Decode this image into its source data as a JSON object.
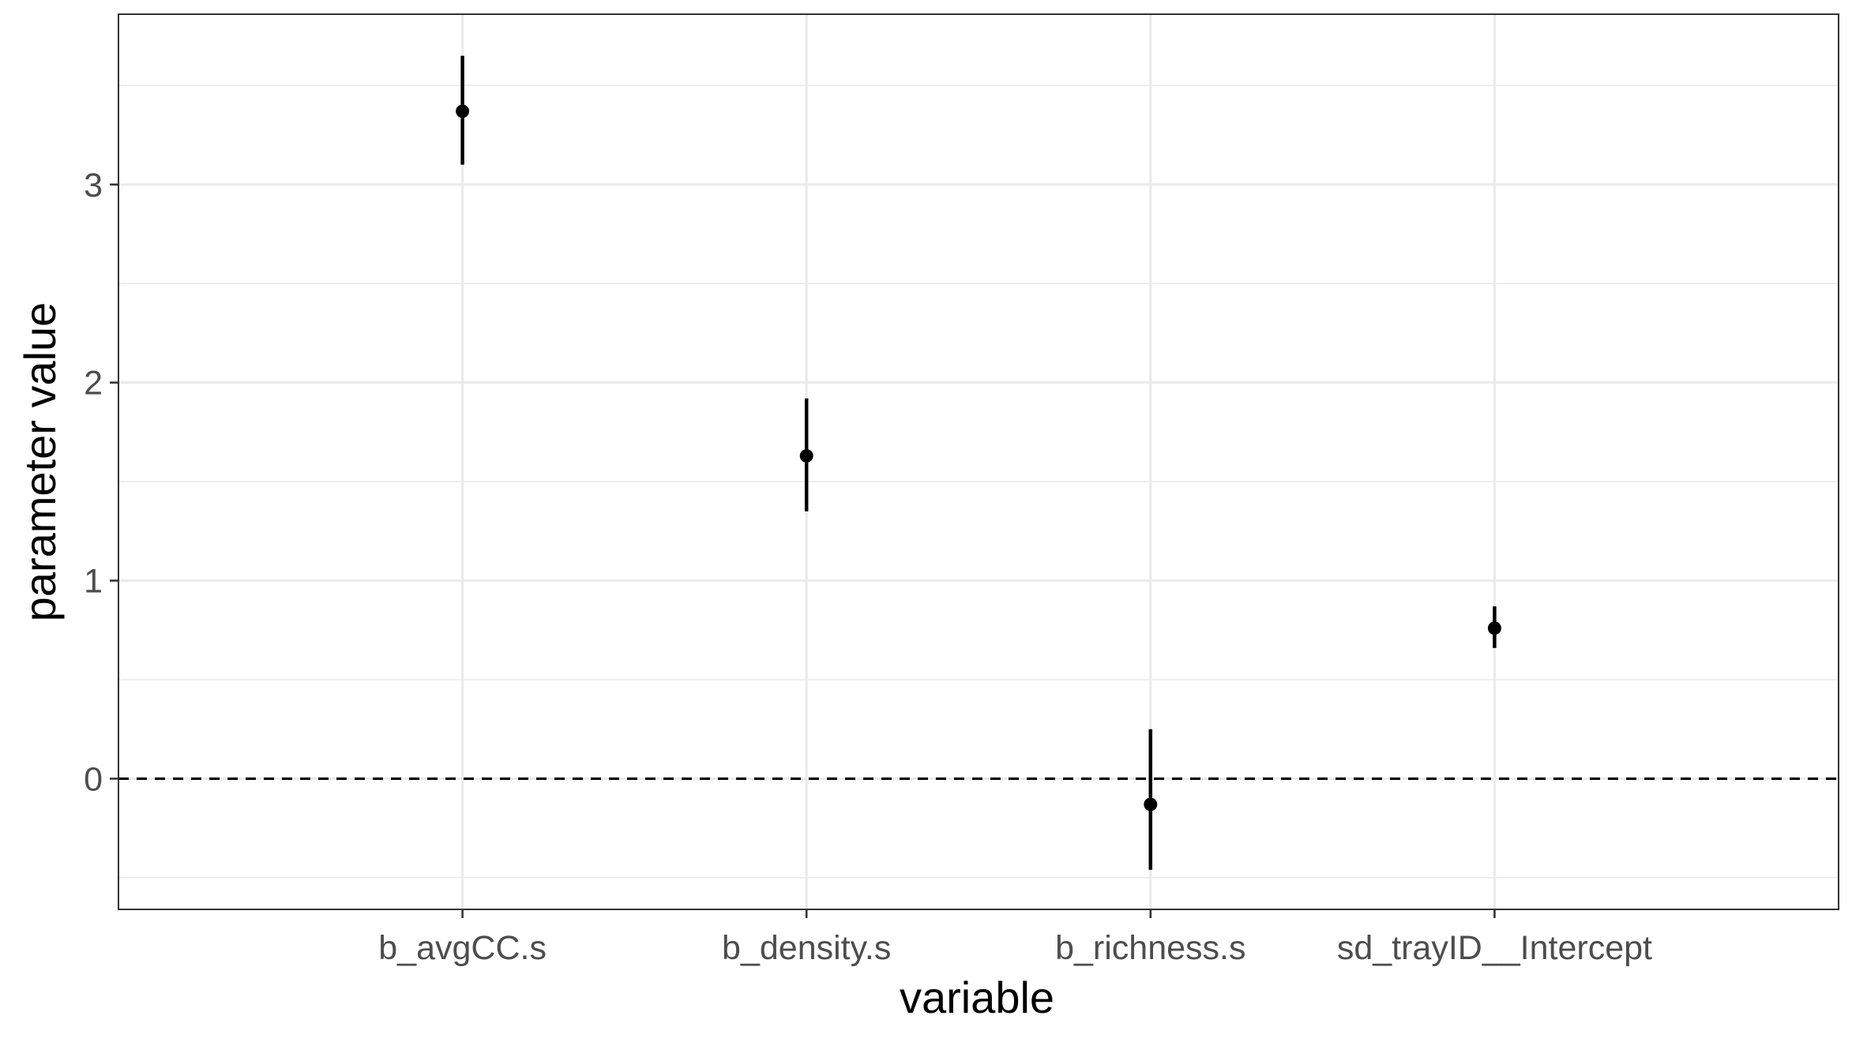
{
  "chart_data": {
    "type": "scatter",
    "subtype": "pointrange",
    "title": "",
    "xlabel": "variable",
    "ylabel": "parameter value",
    "categories": [
      "b_avgCC.s",
      "b_density.s",
      "b_richness.s",
      "sd_trayID__Intercept"
    ],
    "series": [
      {
        "estimate": [
          3.37,
          1.63,
          -0.13,
          0.76
        ],
        "lower": [
          3.1,
          1.35,
          -0.46,
          0.66
        ],
        "upper": [
          3.65,
          1.92,
          0.25,
          0.87
        ]
      }
    ],
    "reference_line": {
      "y": 0,
      "style": "dashed"
    },
    "y_ticks": [
      0,
      1,
      2,
      3
    ],
    "ylim": [
      -0.66,
      3.86
    ],
    "grid": true,
    "legend": "none",
    "colors": {
      "points": "#000000",
      "grid": "#ebebeb",
      "panel_border": "#333333",
      "tick_text": "#4d4d4d"
    }
  }
}
